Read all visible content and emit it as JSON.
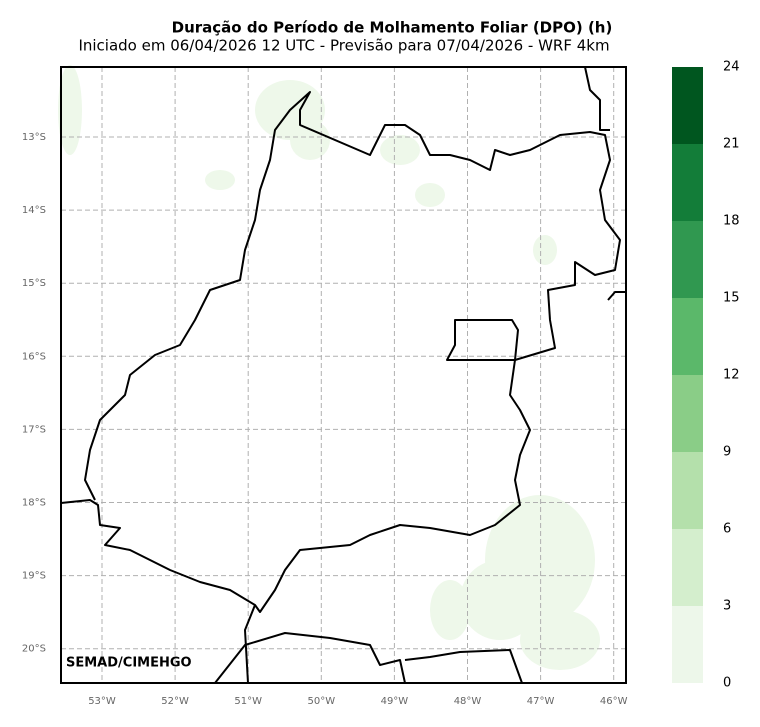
{
  "title": "Duração do Período de Molhamento Foliar (DPO) (h)",
  "subtitle": "Iniciado em 06/04/2026 12 UTC - Previsão para 07/04/2026 - WRF 4km",
  "credit": "SEMAD/CIMEHGO",
  "lat_labels": [
    "13°S",
    "14°S",
    "15°S",
    "16°S",
    "17°S",
    "18°S",
    "19°S",
    "20°S"
  ],
  "lon_labels": [
    "53°W",
    "52°W",
    "51°W",
    "50°W",
    "49°W",
    "48°W",
    "47°W",
    "46°W"
  ],
  "colorbar": {
    "ticks": [
      0,
      3,
      6,
      9,
      12,
      15,
      18,
      21,
      24
    ],
    "colors": [
      "#edf7ea",
      "#d4eecd",
      "#b4e0ab",
      "#8acd87",
      "#5bb86a",
      "#309850",
      "#137d39",
      "#00561f"
    ]
  }
}
